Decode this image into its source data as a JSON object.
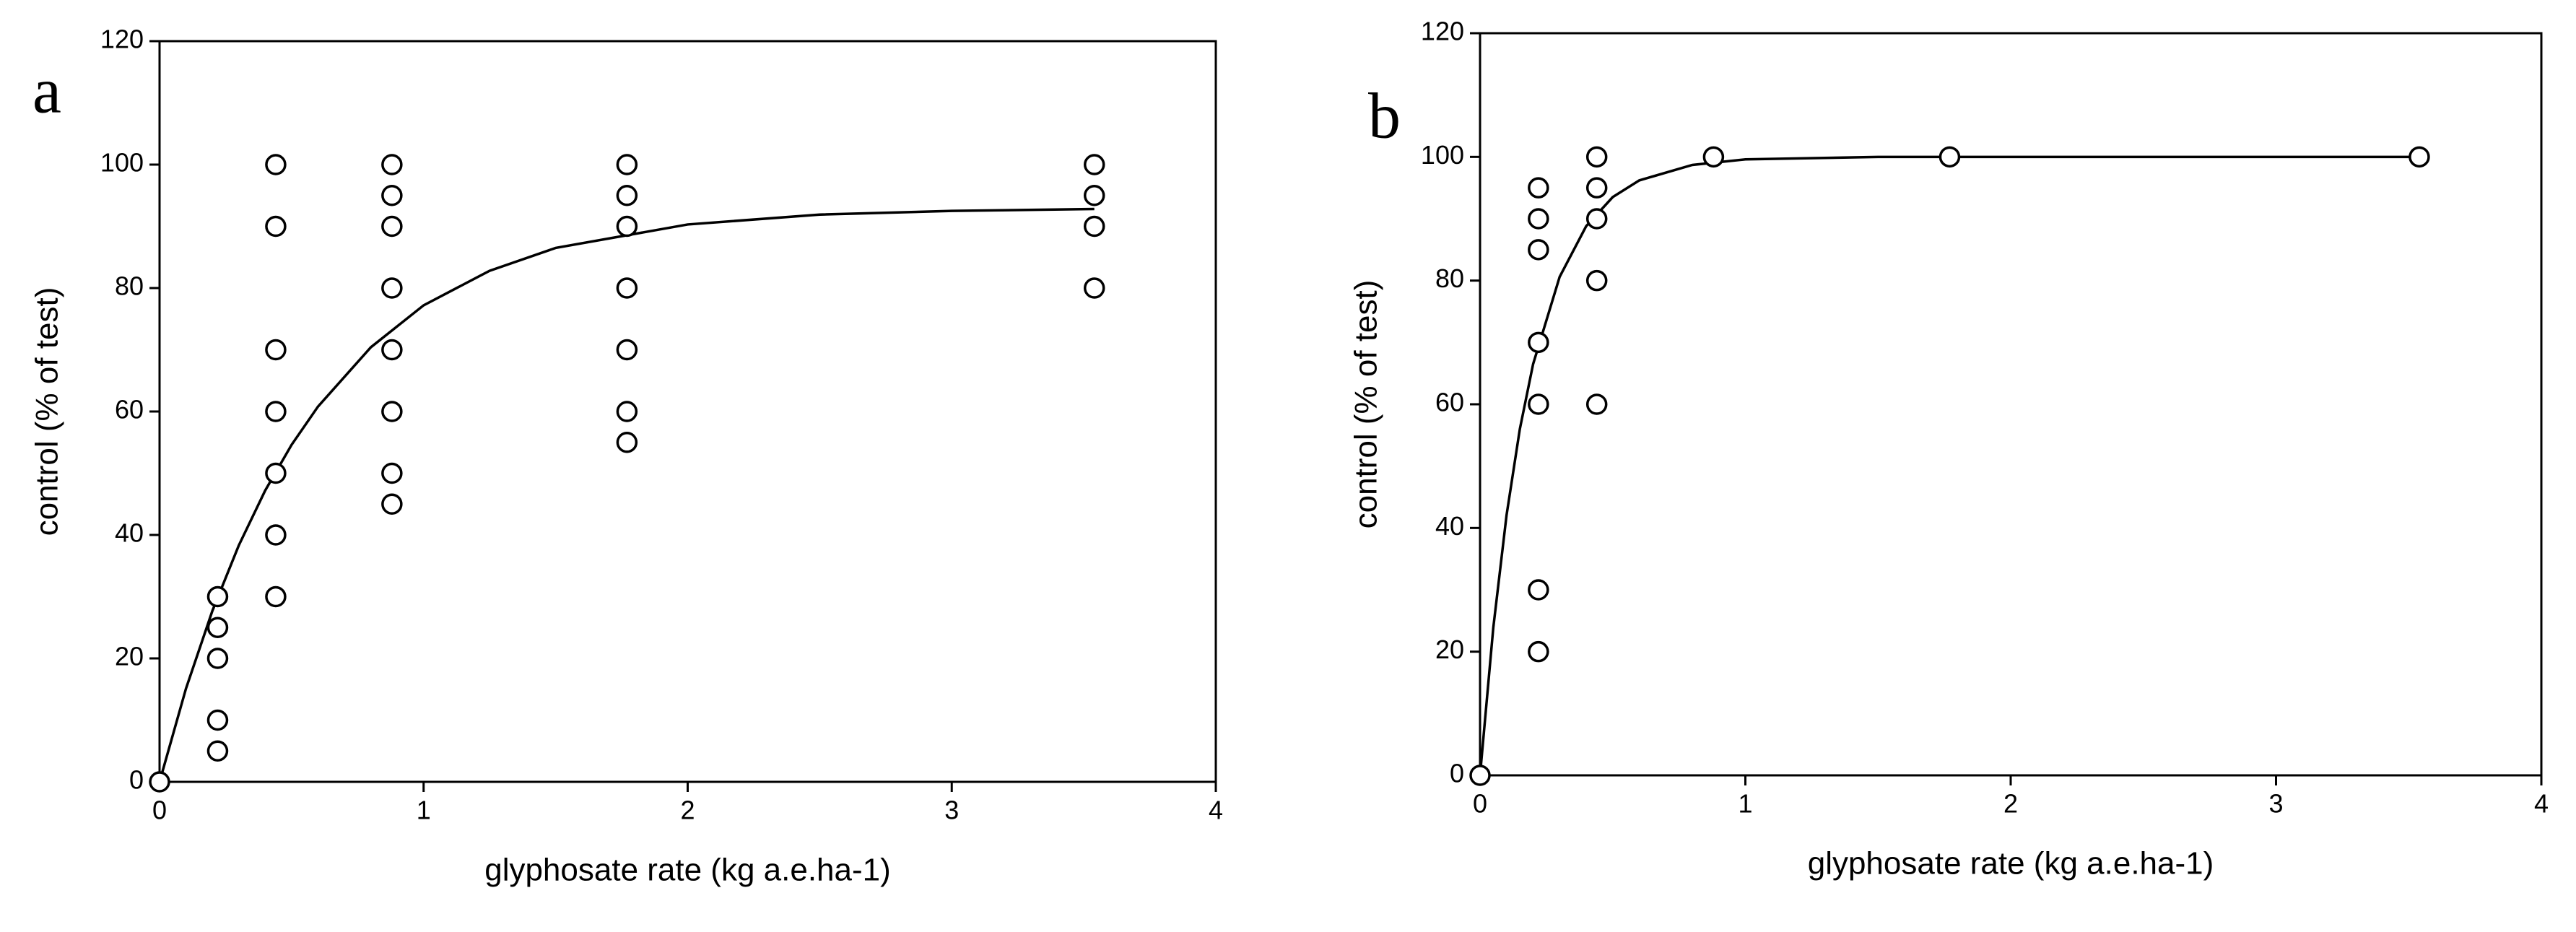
{
  "chart_data": [
    {
      "type": "scatter",
      "label": "a",
      "xlabel": "glyphosate rate (kg a.e.ha-1)",
      "ylabel": "control (% of  test)",
      "xlim": [
        0,
        4
      ],
      "ylim": [
        0,
        120
      ],
      "xticks": [
        0,
        1,
        2,
        3,
        4
      ],
      "yticks": [
        0,
        20,
        40,
        60,
        80,
        100,
        120
      ],
      "series": [
        {
          "style": "marker",
          "color": "#000000",
          "x": [
            0,
            0.22,
            0.22,
            0.22,
            0.22,
            0.22,
            0.44,
            0.44,
            0.44,
            0.44,
            0.44,
            0.44,
            0.44,
            0.88,
            0.88,
            0.88,
            0.88,
            0.88,
            0.88,
            0.88,
            0.88,
            1.77,
            1.77,
            1.77,
            1.77,
            1.77,
            1.77,
            1.77,
            3.54,
            3.54,
            3.54,
            3.54
          ],
          "values": [
            0,
            30,
            25,
            20,
            10,
            5,
            100,
            90,
            70,
            60,
            50,
            40,
            30,
            100,
            95,
            90,
            80,
            70,
            60,
            50,
            45,
            100,
            95,
            90,
            80,
            70,
            60,
            55,
            100,
            95,
            90,
            80
          ]
        },
        {
          "style": "line",
          "color": "#000000",
          "x": [
            0,
            0.1,
            0.2,
            0.3,
            0.4,
            0.5,
            0.6,
            0.8,
            1,
            1.25,
            1.5,
            2,
            2.5,
            3,
            3.54
          ],
          "values": [
            0,
            15.1,
            27.7,
            38.3,
            47.2,
            54.6,
            60.8,
            70.4,
            77.2,
            82.8,
            86.5,
            90.3,
            91.9,
            92.5,
            92.8
          ]
        }
      ]
    },
    {
      "type": "scatter",
      "label": "b",
      "xlabel": "glyphosate rate (kg a.e.ha-1)",
      "ylabel": "control (% of test)",
      "xlim": [
        0,
        4
      ],
      "ylim": [
        0,
        120
      ],
      "xticks": [
        0,
        1,
        2,
        3,
        4
      ],
      "yticks": [
        0,
        20,
        40,
        60,
        80,
        100,
        120
      ],
      "series": [
        {
          "style": "marker",
          "color": "#000000",
          "x": [
            0,
            0.22,
            0.22,
            0.22,
            0.22,
            0.22,
            0.22,
            0.22,
            0.44,
            0.44,
            0.44,
            0.44,
            0.44,
            0.88,
            1.77,
            3.54
          ],
          "values": [
            0,
            95,
            90,
            85,
            70,
            60,
            30,
            20,
            100,
            95,
            90,
            80,
            60,
            100,
            100,
            100
          ]
        },
        {
          "style": "line",
          "color": "#000000",
          "x": [
            0,
            0.05,
            0.1,
            0.15,
            0.2,
            0.3,
            0.4,
            0.5,
            0.6,
            0.8,
            1,
            1.5,
            2,
            3,
            3.54
          ],
          "values": [
            0,
            23.9,
            42.1,
            56,
            66.5,
            80.6,
            88.8,
            93.5,
            96.2,
            98.7,
            99.6,
            100,
            100,
            100,
            100
          ]
        }
      ]
    }
  ]
}
